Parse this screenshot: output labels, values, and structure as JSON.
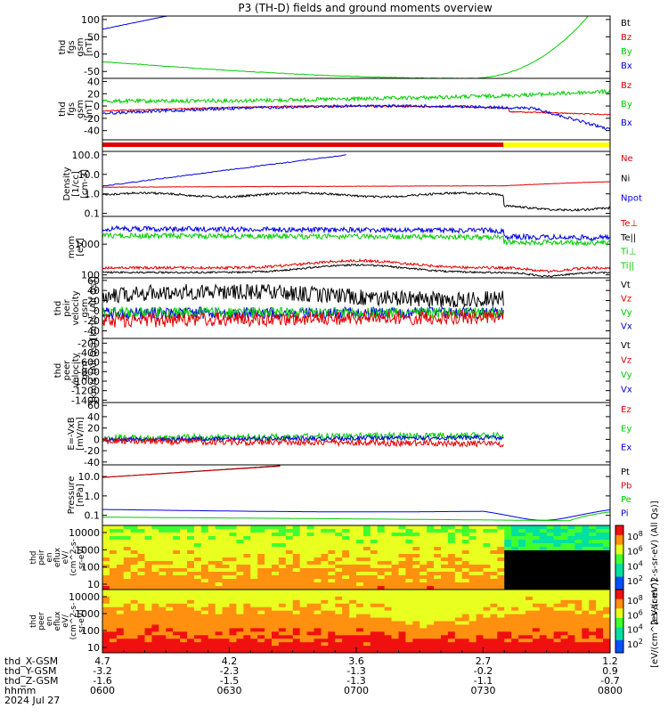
{
  "title": "P3 (TH-D) fields and ground moments overview",
  "colors": {
    "black": "#000000",
    "red": "#e00000",
    "green": "#00cc00",
    "blue": "#0000e0",
    "yellow": "#ffff00"
  },
  "chart_data": [
    {
      "type": "line",
      "id": "fgs_big",
      "ylabel": [
        "thd",
        "fgs",
        "gsm",
        "[nT]"
      ],
      "yticks": [
        "100",
        "50",
        "0",
        "-50"
      ],
      "ylim": [
        -70,
        110
      ],
      "legend": [
        {
          "label": "Bt",
          "color": "black"
        },
        {
          "label": "Bz",
          "color": "red"
        },
        {
          "label": "By",
          "color": "green"
        },
        {
          "label": "Bx",
          "color": "blue"
        }
      ]
    },
    {
      "type": "line",
      "id": "fgs_small",
      "ylabel": [
        "thd",
        "fgs",
        "gsm",
        "[nT]"
      ],
      "yticks": [
        "40",
        "20",
        "0",
        "-20",
        "-40"
      ],
      "ylim": [
        -55,
        45
      ],
      "legend": [
        {
          "label": "Bz",
          "color": "red"
        },
        {
          "label": "By",
          "color": "green"
        },
        {
          "label": "Bx",
          "color": "blue"
        }
      ]
    },
    {
      "type": "line",
      "id": "density",
      "log": true,
      "ylabel": [
        "Density",
        "[1/cc]",
        "[cm-3]"
      ],
      "yticks": [
        "100.0",
        "10.0",
        "1.0",
        "0.1"
      ],
      "ylim": [
        0.07,
        150
      ],
      "legend": [
        {
          "label": "Ne",
          "color": "red"
        },
        {
          "label": "Ni",
          "color": "black"
        },
        {
          "label": "Npot",
          "color": "blue"
        }
      ]
    },
    {
      "type": "line",
      "id": "temperature",
      "log": true,
      "ylabel": [
        "mom",
        "[eV]"
      ],
      "yticks": [
        "1000",
        "100"
      ],
      "ylim": [
        80,
        8000
      ],
      "legend": [
        {
          "label": "Te⊥",
          "color": "red"
        },
        {
          "label": "Te||",
          "color": "black"
        },
        {
          "label": "Ti⊥",
          "color": "green"
        },
        {
          "label": "Ti||",
          "color": "green"
        }
      ]
    },
    {
      "type": "line",
      "id": "ion_velocity",
      "ylabel": [
        "thd",
        "peir",
        "velocity",
        "gsm",
        "[km/s (All Qs)]"
      ],
      "yticks": [
        "60",
        "40",
        "20",
        "0",
        "-20",
        "-40"
      ],
      "ylim": [
        -55,
        65
      ],
      "legend": [
        {
          "label": "Vt",
          "color": "black"
        },
        {
          "label": "Vz",
          "color": "red"
        },
        {
          "label": "Vy",
          "color": "green"
        },
        {
          "label": "Vx",
          "color": "blue"
        }
      ]
    },
    {
      "type": "line",
      "id": "electron_velocity",
      "ylabel": [
        "thd",
        "peer",
        "velocity",
        "gsm",
        "[km/s (All Qs)]"
      ],
      "yticks": [
        "-200",
        "-400",
        "-600",
        "-800",
        "-1000",
        "-1200",
        "-1400"
      ],
      "ylim": [
        -1450,
        -100
      ],
      "legend": [
        {
          "label": "Vt",
          "color": "black"
        },
        {
          "label": "Vz",
          "color": "red"
        },
        {
          "label": "Vy",
          "color": "green"
        },
        {
          "label": "Vx",
          "color": "blue"
        }
      ]
    },
    {
      "type": "line",
      "id": "efield",
      "ylabel": [
        "E=-VxB",
        "[mV/m]"
      ],
      "yticks": [
        "60",
        "40",
        "20",
        "0",
        "-20",
        "-40"
      ],
      "ylim": [
        -45,
        65
      ],
      "legend": [
        {
          "label": "Ez",
          "color": "red"
        },
        {
          "label": "Ey",
          "color": "green"
        },
        {
          "label": "Ex",
          "color": "blue"
        }
      ]
    },
    {
      "type": "line",
      "id": "pressure",
      "log": true,
      "ylabel": [
        "Pressure",
        "[nPa]"
      ],
      "yticks": [
        "10.0",
        "1.0",
        "0.1"
      ],
      "ylim": [
        0.03,
        40
      ],
      "legend": [
        {
          "label": "Pt",
          "color": "black"
        },
        {
          "label": "Pb",
          "color": "red"
        },
        {
          "label": "Pe",
          "color": "green"
        },
        {
          "label": "Pi",
          "color": "blue"
        }
      ]
    },
    {
      "type": "heatmap",
      "id": "ion_spectrogram",
      "ylabel": [
        "thd",
        "peir",
        "en",
        "eflux",
        "eV/",
        "(cm^2-s-",
        "sr-eV)"
      ],
      "yticks": [
        "10000",
        "1000",
        "100",
        "10"
      ],
      "cbar_ticks": [
        "10^8",
        "10^6",
        "10^4",
        "10^2"
      ]
    },
    {
      "type": "heatmap",
      "id": "electron_spectrogram",
      "ylabel": [
        "thd",
        "peer",
        "en",
        "eflux",
        "eV/",
        "(cm^2-s-",
        "sr-eV)"
      ],
      "yticks": [
        "10000",
        "1000",
        "100",
        "10"
      ],
      "cbar_ticks": [
        "10^8",
        "10^6",
        "10^4",
        "10^2"
      ]
    }
  ],
  "colorbar_label": "[eV/(cm^2-s-sr-eV)]",
  "colorbar_label_ion": "[eV/(cm^2-s-sr-eV) (All Qs)]",
  "x_axis": {
    "rows": [
      {
        "label": "thd_X-GSM",
        "values": [
          "4.7",
          "4.2",
          "3.6",
          "2.7",
          "1.2"
        ]
      },
      {
        "label": "thd_Y-GSM",
        "values": [
          "-3.2",
          "-2.3",
          "-1.3",
          "-0.2",
          "0.9"
        ]
      },
      {
        "label": "thd_Z-GSM",
        "values": [
          "-1.6",
          "-1.5",
          "-1.3",
          "-1.1",
          "-0.7"
        ]
      },
      {
        "label": "hhmm",
        "values": [
          "0600",
          "0630",
          "0700",
          "0730",
          "0800"
        ]
      }
    ],
    "date": "2024 Jul 27"
  }
}
